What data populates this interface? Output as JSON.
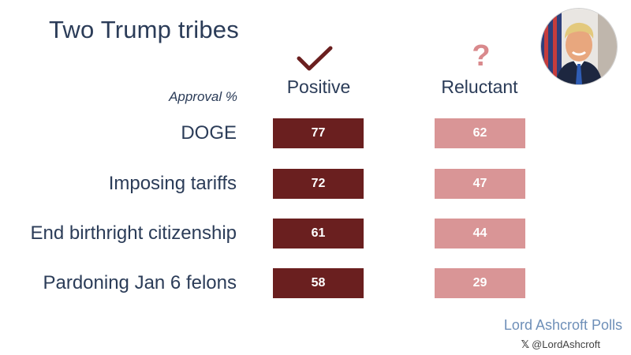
{
  "title": "Two Trump tribes",
  "approval_label": "Approval %",
  "columns": {
    "positive": {
      "label": "Positive",
      "icon": "check-icon",
      "color": "#6a1f1f"
    },
    "reluctant": {
      "label": "Reluctant",
      "icon": "question-icon",
      "color": "#d99596"
    }
  },
  "chart_data": {
    "type": "table",
    "title": "Two Trump tribes",
    "value_label": "Approval %",
    "categories": [
      "DOGE",
      "Imposing tariffs",
      "End birthright citizenship",
      "Pardoning Jan 6 felons"
    ],
    "series": [
      {
        "name": "Positive",
        "values": [
          77,
          72,
          61,
          58
        ]
      },
      {
        "name": "Reluctant",
        "values": [
          62,
          47,
          44,
          29
        ]
      }
    ]
  },
  "footer": {
    "brand": "Lord Ashcroft Polls",
    "handle_icon": "x-logo-icon",
    "handle": "@LordAshcroft"
  },
  "portrait": {
    "icon": "portrait-photo"
  }
}
